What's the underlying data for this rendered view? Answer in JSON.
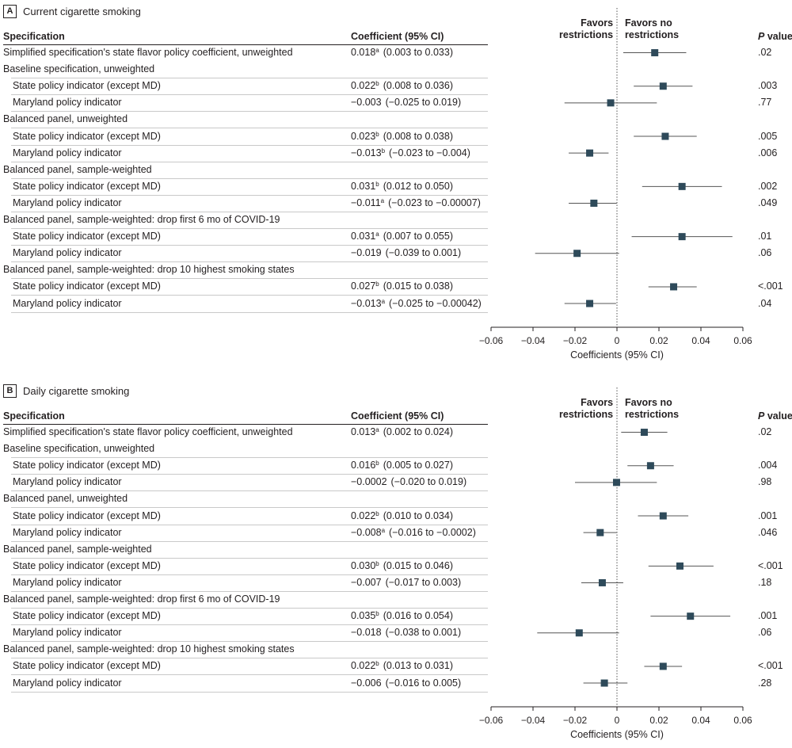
{
  "colors": {
    "marker": "#2e4a5a",
    "ci": "#555555",
    "text": "#231f20",
    "axis": "#231f20",
    "ref_line": "#555555",
    "row_rule": "#c9c9c9"
  },
  "headers": {
    "specification": "Specification",
    "coefficient": "Coefficient (95% CI)",
    "favors_left": [
      "Favors",
      "restrictions"
    ],
    "favors_right": [
      "Favors no",
      "restrictions"
    ],
    "p_italic": "P",
    "p_rest": " value"
  },
  "chart_data": [
    {
      "type": "forest",
      "panel_letter": "A",
      "title": "Current cigarette smoking",
      "xlabel": "Coefficients (95% CI)",
      "xlim": [
        -0.06,
        0.06
      ],
      "xticks": [
        "−0.06",
        "−0.04",
        "−0.02",
        "0",
        "0.02",
        "0.04",
        "0.06"
      ],
      "xtick_values": [
        -0.06,
        -0.04,
        -0.02,
        0,
        0.02,
        0.04,
        0.06
      ],
      "reference_line": 0,
      "rows": [
        {
          "kind": "estimate",
          "indent": 0,
          "label": "Simplified specification's state flavor policy coefficient, unweighted",
          "coef": "0.018",
          "sup": "a",
          "ci_text": "(0.003 to 0.033)",
          "p": ".02",
          "est": 0.018,
          "lo": 0.003,
          "hi": 0.033
        },
        {
          "kind": "header",
          "label": "Baseline specification, unweighted"
        },
        {
          "kind": "estimate",
          "indent": 1,
          "label": "State policy indicator (except MD)",
          "coef": "0.022",
          "sup": "b",
          "ci_text": "(0.008 to 0.036)",
          "p": ".003",
          "est": 0.022,
          "lo": 0.008,
          "hi": 0.036
        },
        {
          "kind": "estimate",
          "indent": 1,
          "label": "Maryland policy indicator",
          "coef": "−0.003",
          "sup": "",
          "ci_text": "(−0.025 to 0.019)",
          "p": ".77",
          "est": -0.003,
          "lo": -0.025,
          "hi": 0.019
        },
        {
          "kind": "header",
          "label": "Balanced panel, unweighted"
        },
        {
          "kind": "estimate",
          "indent": 1,
          "label": "State policy indicator (except MD)",
          "coef": "0.023",
          "sup": "b",
          "ci_text": "(0.008 to 0.038)",
          "p": ".005",
          "est": 0.023,
          "lo": 0.008,
          "hi": 0.038
        },
        {
          "kind": "estimate",
          "indent": 1,
          "label": "Maryland policy indicator",
          "coef": "−0.013",
          "sup": "b",
          "ci_text": "(−0.023 to −0.004)",
          "p": ".006",
          "est": -0.013,
          "lo": -0.023,
          "hi": -0.004
        },
        {
          "kind": "header",
          "label": "Balanced panel, sample-weighted"
        },
        {
          "kind": "estimate",
          "indent": 1,
          "label": "State policy indicator (except MD)",
          "coef": "0.031",
          "sup": "b",
          "ci_text": "(0.012 to 0.050)",
          "p": ".002",
          "est": 0.031,
          "lo": 0.012,
          "hi": 0.05
        },
        {
          "kind": "estimate",
          "indent": 1,
          "label": "Maryland policy indicator",
          "coef": "−0.011",
          "sup": "a",
          "ci_text": "(−0.023 to −0.00007)",
          "p": ".049",
          "est": -0.011,
          "lo": -0.023,
          "hi": -7e-05
        },
        {
          "kind": "header",
          "label": "Balanced panel, sample-weighted: drop first 6 mo of COVID-19"
        },
        {
          "kind": "estimate",
          "indent": 1,
          "label": "State policy indicator (except MD)",
          "coef": "0.031",
          "sup": "a",
          "ci_text": "(0.007 to 0.055)",
          "p": ".01",
          "est": 0.031,
          "lo": 0.007,
          "hi": 0.055
        },
        {
          "kind": "estimate",
          "indent": 1,
          "label": "Maryland policy indicator",
          "coef": "−0.019",
          "sup": "",
          "ci_text": "(−0.039 to 0.001)",
          "p": ".06",
          "est": -0.019,
          "lo": -0.039,
          "hi": 0.001
        },
        {
          "kind": "header",
          "label": "Balanced panel, sample-weighted: drop 10 highest smoking states"
        },
        {
          "kind": "estimate",
          "indent": 1,
          "label": "State policy indicator (except MD)",
          "coef": "0.027",
          "sup": "b",
          "ci_text": "(0.015 to 0.038)",
          "p": "<.001",
          "est": 0.027,
          "lo": 0.015,
          "hi": 0.038
        },
        {
          "kind": "estimate",
          "indent": 1,
          "label": "Maryland policy indicator",
          "coef": "−0.013",
          "sup": "a",
          "ci_text": "(−0.025 to −0.00042)",
          "p": ".04",
          "est": -0.013,
          "lo": -0.025,
          "hi": -0.00042
        }
      ]
    },
    {
      "type": "forest",
      "panel_letter": "B",
      "title": "Daily cigarette smoking",
      "xlabel": "Coefficients (95% CI)",
      "xlim": [
        -0.06,
        0.06
      ],
      "xticks": [
        "−0.06",
        "−0.04",
        "−0.02",
        "0",
        "0.02",
        "0.04",
        "0.06"
      ],
      "xtick_values": [
        -0.06,
        -0.04,
        -0.02,
        0,
        0.02,
        0.04,
        0.06
      ],
      "reference_line": 0,
      "rows": [
        {
          "kind": "estimate",
          "indent": 0,
          "label": "Simplified specification's state flavor policy coefficient, unweighted",
          "coef": "0.013",
          "sup": "a",
          "ci_text": "(0.002 to 0.024)",
          "p": ".02",
          "est": 0.013,
          "lo": 0.002,
          "hi": 0.024
        },
        {
          "kind": "header",
          "label": "Baseline specification, unweighted"
        },
        {
          "kind": "estimate",
          "indent": 1,
          "label": "State policy indicator (except MD)",
          "coef": "0.016",
          "sup": "b",
          "ci_text": "(0.005 to 0.027)",
          "p": ".004",
          "est": 0.016,
          "lo": 0.005,
          "hi": 0.027
        },
        {
          "kind": "estimate",
          "indent": 1,
          "label": "Maryland policy indicator",
          "coef": "−0.0002",
          "sup": "",
          "ci_text": "(−0.020 to 0.019)",
          "p": ".98",
          "est": -0.0002,
          "lo": -0.02,
          "hi": 0.019
        },
        {
          "kind": "header",
          "label": "Balanced panel, unweighted"
        },
        {
          "kind": "estimate",
          "indent": 1,
          "label": "State policy indicator (except MD)",
          "coef": "0.022",
          "sup": "b",
          "ci_text": "(0.010 to 0.034)",
          "p": ".001",
          "est": 0.022,
          "lo": 0.01,
          "hi": 0.034
        },
        {
          "kind": "estimate",
          "indent": 1,
          "label": "Maryland policy indicator",
          "coef": "−0.008",
          "sup": "a",
          "ci_text": "(−0.016 to −0.0002)",
          "p": ".046",
          "est": -0.008,
          "lo": -0.016,
          "hi": -0.0002
        },
        {
          "kind": "header",
          "label": "Balanced panel, sample-weighted"
        },
        {
          "kind": "estimate",
          "indent": 1,
          "label": "State policy indicator (except MD)",
          "coef": "0.030",
          "sup": "b",
          "ci_text": "(0.015 to 0.046)",
          "p": "<.001",
          "est": 0.03,
          "lo": 0.015,
          "hi": 0.046
        },
        {
          "kind": "estimate",
          "indent": 1,
          "label": "Maryland policy indicator",
          "coef": "−0.007",
          "sup": "",
          "ci_text": "(−0.017 to 0.003)",
          "p": ".18",
          "est": -0.007,
          "lo": -0.017,
          "hi": 0.003
        },
        {
          "kind": "header",
          "label": "Balanced panel, sample-weighted: drop first 6 mo of COVID-19"
        },
        {
          "kind": "estimate",
          "indent": 1,
          "label": "State policy indicator (except MD)",
          "coef": "0.035",
          "sup": "b",
          "ci_text": "(0.016 to 0.054)",
          "p": ".001",
          "est": 0.035,
          "lo": 0.016,
          "hi": 0.054
        },
        {
          "kind": "estimate",
          "indent": 1,
          "label": "Maryland policy indicator",
          "coef": "−0.018",
          "sup": "",
          "ci_text": "(−0.038 to 0.001)",
          "p": ".06",
          "est": -0.018,
          "lo": -0.038,
          "hi": 0.001
        },
        {
          "kind": "header",
          "label": "Balanced panel, sample-weighted: drop 10 highest smoking states"
        },
        {
          "kind": "estimate",
          "indent": 1,
          "label": "State policy indicator (except MD)",
          "coef": "0.022",
          "sup": "b",
          "ci_text": "(0.013 to 0.031)",
          "p": "<.001",
          "est": 0.022,
          "lo": 0.013,
          "hi": 0.031
        },
        {
          "kind": "estimate",
          "indent": 1,
          "label": "Maryland policy indicator",
          "coef": "−0.006",
          "sup": "",
          "ci_text": "(−0.016 to 0.005)",
          "p": ".28",
          "est": -0.006,
          "lo": -0.016,
          "hi": 0.005
        }
      ]
    }
  ]
}
